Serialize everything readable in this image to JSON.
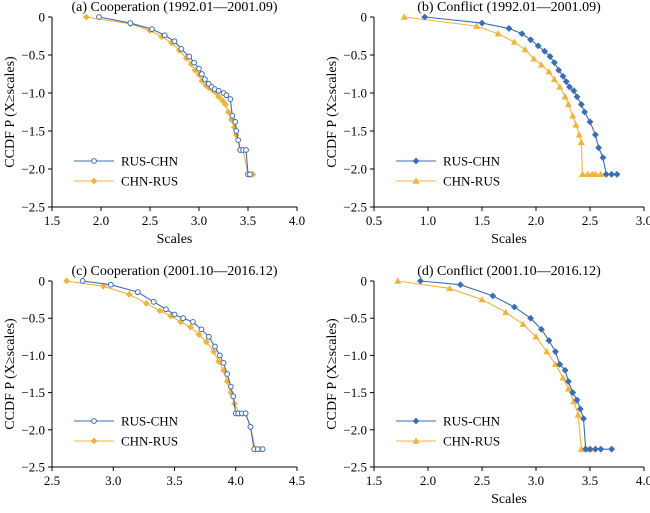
{
  "chart_data": [
    {
      "type": "line",
      "title": "(a) Cooperation (1992.01—2001.09)",
      "xlabel": "Scales",
      "ylabel": "CCDF P (X≥scales)",
      "xlim": [
        1.5,
        4.0
      ],
      "ylim": [
        -2.5,
        0
      ],
      "xticks": [
        "1.5",
        "2.0",
        "2.5",
        "3.0",
        "3.5",
        "4.0"
      ],
      "yticks": [
        "0",
        "−0.5",
        "−1.0",
        "−1.5",
        "−2.0",
        "−2.5"
      ],
      "legend_position": "lower-left",
      "series": [
        {
          "name": "RUS-CHN",
          "color": "#3b6db5",
          "marker": "circle",
          "x": [
            1.98,
            2.3,
            2.52,
            2.65,
            2.75,
            2.82,
            2.9,
            2.95,
            3.0,
            3.03,
            3.06,
            3.1,
            3.13,
            3.16,
            3.2,
            3.25,
            3.28,
            3.32,
            3.34,
            3.37,
            3.38,
            3.4,
            3.42,
            3.45,
            3.48,
            3.5,
            3.52
          ],
          "y": [
            0.0,
            -0.08,
            -0.16,
            -0.24,
            -0.32,
            -0.42,
            -0.52,
            -0.6,
            -0.68,
            -0.75,
            -0.82,
            -0.88,
            -0.92,
            -0.95,
            -0.97,
            -1.0,
            -1.03,
            -1.08,
            -1.3,
            -1.38,
            -1.5,
            -1.62,
            -1.75,
            -1.75,
            -1.75,
            -2.07,
            -2.07
          ]
        },
        {
          "name": "CHN-RUS",
          "color": "#f0b43a",
          "marker": "diamond",
          "x": [
            1.85,
            2.3,
            2.5,
            2.62,
            2.72,
            2.8,
            2.87,
            2.92,
            2.96,
            3.0,
            3.03,
            3.07,
            3.1,
            3.14,
            3.18,
            3.2,
            3.24,
            3.27,
            3.3,
            3.33,
            3.36,
            3.38,
            3.42,
            3.45,
            3.5,
            3.52,
            3.55
          ],
          "y": [
            0.0,
            -0.09,
            -0.18,
            -0.26,
            -0.34,
            -0.44,
            -0.54,
            -0.62,
            -0.7,
            -0.76,
            -0.84,
            -0.9,
            -0.93,
            -0.96,
            -1.0,
            -1.05,
            -1.1,
            -1.15,
            -1.25,
            -1.35,
            -1.45,
            -1.55,
            -1.75,
            -1.75,
            -2.07,
            -2.07,
            -2.07
          ]
        }
      ]
    },
    {
      "type": "line",
      "title": "(b) Conflict (1992.01—2001.09)",
      "xlabel": "Scales",
      "ylabel": "CCDF P (X≥scales)",
      "xlim": [
        0.5,
        3.0
      ],
      "ylim": [
        -2.5,
        0
      ],
      "xticks": [
        "0.5",
        "1.0",
        "1.5",
        "2.0",
        "2.5",
        "3.0"
      ],
      "yticks": [
        "0",
        "−0.5",
        "−1.0",
        "−1.5",
        "−2.0",
        "−2.5"
      ],
      "legend_position": "lower-left",
      "series": [
        {
          "name": "RUS-CHN",
          "color": "#3b6db5",
          "marker": "diamond",
          "x": [
            0.97,
            1.5,
            1.75,
            1.87,
            1.95,
            2.02,
            2.08,
            2.13,
            2.17,
            2.21,
            2.25,
            2.28,
            2.31,
            2.35,
            2.38,
            2.42,
            2.45,
            2.5,
            2.55,
            2.58,
            2.62,
            2.65,
            2.7,
            2.75
          ],
          "y": [
            0.0,
            -0.08,
            -0.15,
            -0.22,
            -0.3,
            -0.38,
            -0.45,
            -0.52,
            -0.6,
            -0.7,
            -0.78,
            -0.85,
            -0.92,
            -0.97,
            -1.05,
            -1.15,
            -1.25,
            -1.38,
            -1.55,
            -1.72,
            -1.85,
            -2.07,
            -2.07,
            -2.07
          ]
        },
        {
          "name": "CHN-RUS",
          "color": "#f0b43a",
          "marker": "triangle",
          "x": [
            0.78,
            1.45,
            1.65,
            1.8,
            1.9,
            1.98,
            2.05,
            2.12,
            2.17,
            2.22,
            2.27,
            2.3,
            2.34,
            2.37,
            2.4,
            2.42,
            2.43,
            2.48,
            2.52,
            2.55,
            2.6
          ],
          "y": [
            0.0,
            -0.12,
            -0.22,
            -0.33,
            -0.43,
            -0.55,
            -0.63,
            -0.72,
            -0.82,
            -0.92,
            -1.05,
            -1.15,
            -1.3,
            -1.42,
            -1.55,
            -1.65,
            -2.07,
            -2.07,
            -2.07,
            -2.07,
            -2.07
          ]
        }
      ]
    },
    {
      "type": "line",
      "title": "(c) Cooperation (2001.10—2016.12)",
      "xlabel": "",
      "ylabel": "CCDF P (X≥scales)",
      "xlim": [
        2.5,
        4.5
      ],
      "ylim": [
        -2.5,
        0
      ],
      "xticks": [
        "2.5",
        "3.0",
        "3.5",
        "4.0",
        "4.5"
      ],
      "yticks": [
        "0",
        "−0.5",
        "−1.0",
        "−1.5",
        "−2.0",
        "−2.5"
      ],
      "legend_position": "lower-left",
      "series": [
        {
          "name": "RUS-CHN",
          "color": "#3b6db5",
          "marker": "circle",
          "x": [
            2.75,
            2.98,
            3.2,
            3.33,
            3.43,
            3.5,
            3.57,
            3.65,
            3.72,
            3.78,
            3.83,
            3.87,
            3.9,
            3.93,
            3.96,
            3.98,
            4.0,
            4.02,
            4.05,
            4.08,
            4.12,
            4.15,
            4.18,
            4.22
          ],
          "y": [
            0.0,
            -0.05,
            -0.15,
            -0.28,
            -0.38,
            -0.45,
            -0.5,
            -0.55,
            -0.65,
            -0.75,
            -0.88,
            -1.0,
            -1.1,
            -1.25,
            -1.42,
            -1.55,
            -1.78,
            -1.78,
            -1.78,
            -1.78,
            -1.96,
            -2.26,
            -2.26,
            -2.26
          ]
        },
        {
          "name": "CHN-RUS",
          "color": "#f0b43a",
          "marker": "diamond",
          "x": [
            2.62,
            2.92,
            3.13,
            3.27,
            3.38,
            3.47,
            3.55,
            3.63,
            3.7,
            3.76,
            3.82,
            3.86,
            3.9,
            3.93,
            3.96,
            3.99,
            4.03,
            4.08,
            4.12,
            4.16,
            4.2
          ],
          "y": [
            0.0,
            -0.07,
            -0.18,
            -0.3,
            -0.4,
            -0.47,
            -0.55,
            -0.62,
            -0.72,
            -0.82,
            -0.95,
            -1.08,
            -1.2,
            -1.35,
            -1.5,
            -1.65,
            -1.78,
            -1.78,
            -1.96,
            -2.26,
            -2.26
          ]
        }
      ]
    },
    {
      "type": "line",
      "title": "(d) Conflict (2001.10—2016.12)",
      "xlabel": "Scales",
      "ylabel": "CCDF P (X≥scales)",
      "xlim": [
        1.5,
        4.0
      ],
      "ylim": [
        -2.5,
        0
      ],
      "xticks": [
        "1.5",
        "2.0",
        "2.5",
        "3.0",
        "3.5",
        "4.0"
      ],
      "yticks": [
        "0",
        "−0.5",
        "−1.0",
        "−1.5",
        "−2.0",
        "−2.5"
      ],
      "legend_position": "lower-left",
      "series": [
        {
          "name": "RUS-CHN",
          "color": "#3b6db5",
          "marker": "diamond",
          "x": [
            1.93,
            2.3,
            2.6,
            2.8,
            2.95,
            3.05,
            3.12,
            3.18,
            3.22,
            3.27,
            3.3,
            3.34,
            3.38,
            3.41,
            3.44,
            3.46,
            3.5,
            3.55,
            3.6,
            3.7
          ],
          "y": [
            0.0,
            -0.05,
            -0.2,
            -0.35,
            -0.5,
            -0.65,
            -0.8,
            -0.95,
            -1.12,
            -1.2,
            -1.35,
            -1.5,
            -1.6,
            -1.72,
            -1.85,
            -2.26,
            -2.26,
            -2.26,
            -2.26,
            -2.26
          ]
        },
        {
          "name": "CHN-RUS",
          "color": "#f0b43a",
          "marker": "triangle",
          "x": [
            1.72,
            2.2,
            2.5,
            2.72,
            2.88,
            3.0,
            3.1,
            3.18,
            3.25,
            3.3,
            3.35,
            3.39,
            3.42,
            3.45,
            3.5
          ],
          "y": [
            0.0,
            -0.1,
            -0.25,
            -0.42,
            -0.58,
            -0.75,
            -0.95,
            -1.12,
            -1.3,
            -1.45,
            -1.62,
            -1.8,
            -2.26,
            -2.26,
            -2.26
          ]
        }
      ]
    }
  ]
}
